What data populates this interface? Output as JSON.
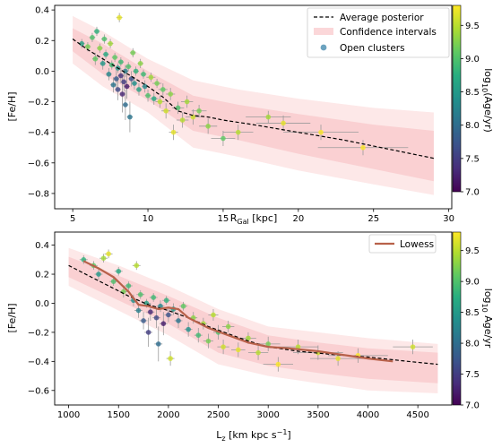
{
  "colors": {
    "band_outer": "#fde8e8",
    "band_inner": "#f9c9cc",
    "avg_line": "#000000",
    "lowess": "#b8614a",
    "errorbar": "#9a9a9a",
    "viridis": [
      "#440154",
      "#472d7b",
      "#3b528b",
      "#2c728e",
      "#21918c",
      "#28ae80",
      "#5ec962",
      "#addc30",
      "#fde725"
    ]
  },
  "chart_data": [
    {
      "type": "scatter",
      "title": "",
      "xlabel_main": "R",
      "xlabel_sub": "Gal",
      "xlabel_unit": " [kpc]",
      "ylabel": "[Fe/H]",
      "xlim": [
        3.8,
        30.2
      ],
      "ylim": [
        -0.9,
        0.43
      ],
      "xticks": [
        5,
        10,
        15,
        20,
        25,
        30
      ],
      "yticks": [
        -0.8,
        -0.6,
        -0.4,
        -0.2,
        0.0,
        0.2,
        0.4
      ],
      "yticklabels": [
        "−0.8",
        "−0.6",
        "−0.4",
        "−0.2",
        "0.0",
        "0.2",
        "0.4"
      ],
      "legend_position": "top-right",
      "legend": {
        "avg": "Average posterior",
        "ci": "Confidence intervals",
        "oc": "Open clusters"
      },
      "average_posterior": {
        "x": [
          5,
          6,
          7,
          8,
          9,
          10,
          11,
          12,
          13,
          14,
          15,
          17,
          20,
          23,
          26,
          29
        ],
        "y": [
          0.21,
          0.14,
          0.08,
          0.02,
          -0.04,
          -0.1,
          -0.17,
          -0.26,
          -0.29,
          -0.3,
          -0.32,
          -0.35,
          -0.4,
          -0.45,
          -0.51,
          -0.57
        ]
      },
      "band_outer": {
        "x": [
          5,
          7,
          10,
          13,
          16,
          20,
          25,
          29
        ],
        "upper": [
          0.36,
          0.26,
          0.08,
          -0.06,
          -0.12,
          -0.18,
          -0.24,
          -0.27
        ],
        "lower": [
          0.05,
          -0.1,
          -0.27,
          -0.5,
          -0.56,
          -0.65,
          -0.74,
          -0.81
        ]
      },
      "band_inner": {
        "x": [
          5,
          7,
          10,
          13,
          16,
          20,
          25,
          29
        ],
        "upper": [
          0.28,
          0.18,
          0.0,
          -0.16,
          -0.22,
          -0.28,
          -0.35,
          -0.39
        ],
        "lower": [
          0.13,
          -0.02,
          -0.19,
          -0.39,
          -0.45,
          -0.54,
          -0.64,
          -0.72
        ]
      },
      "colorbar": {
        "label": "log10(Age/yr)",
        "label_main": "log",
        "label_sub": "10",
        "label_rest": "(Age/yr)",
        "range": [
          7.0,
          9.8
        ],
        "ticks": [
          7.0,
          7.5,
          8.0,
          8.5,
          9.0,
          9.5
        ]
      },
      "points": [
        {
          "x": 5.6,
          "y": 0.18,
          "age": 8.6,
          "xerr": 0.2,
          "yerr": 0.03
        },
        {
          "x": 6.0,
          "y": 0.16,
          "age": 9.2,
          "xerr": 0.2,
          "yerr": 0.03
        },
        {
          "x": 6.3,
          "y": 0.22,
          "age": 9.0,
          "xerr": 0.2,
          "yerr": 0.03
        },
        {
          "x": 6.5,
          "y": 0.08,
          "age": 9.1,
          "xerr": 0.2,
          "yerr": 0.04
        },
        {
          "x": 6.6,
          "y": 0.26,
          "age": 8.8,
          "xerr": 0.2,
          "yerr": 0.03
        },
        {
          "x": 6.8,
          "y": 0.15,
          "age": 9.3,
          "xerr": 0.2,
          "yerr": 0.03
        },
        {
          "x": 7.0,
          "y": 0.05,
          "age": 8.5,
          "xerr": 0.2,
          "yerr": 0.04
        },
        {
          "x": 7.1,
          "y": 0.21,
          "age": 9.0,
          "xerr": 0.2,
          "yerr": 0.03
        },
        {
          "x": 7.2,
          "y": 0.11,
          "age": 8.7,
          "xerr": 0.2,
          "yerr": 0.03
        },
        {
          "x": 7.4,
          "y": -0.02,
          "age": 8.3,
          "xerr": 0.2,
          "yerr": 0.04
        },
        {
          "x": 7.5,
          "y": 0.18,
          "age": 9.4,
          "xerr": 0.2,
          "yerr": 0.03
        },
        {
          "x": 7.6,
          "y": 0.04,
          "age": 8.9,
          "xerr": 0.2,
          "yerr": 0.03
        },
        {
          "x": 7.7,
          "y": -0.09,
          "age": 8.1,
          "xerr": 0.2,
          "yerr": 0.05
        },
        {
          "x": 7.8,
          "y": 0.09,
          "age": 9.1,
          "xerr": 0.2,
          "yerr": 0.03
        },
        {
          "x": 7.9,
          "y": -0.05,
          "age": 7.8,
          "xerr": 0.2,
          "yerr": 0.06
        },
        {
          "x": 8.0,
          "y": 0.02,
          "age": 8.5,
          "xerr": 0.2,
          "yerr": 0.03
        },
        {
          "x": 8.0,
          "y": -0.12,
          "age": 7.6,
          "xerr": 0.2,
          "yerr": 0.07
        },
        {
          "x": 8.1,
          "y": 0.35,
          "age": 9.7,
          "xerr": 0.2,
          "yerr": 0.03
        },
        {
          "x": 8.2,
          "y": -0.03,
          "age": 7.4,
          "xerr": 0.2,
          "yerr": 0.05
        },
        {
          "x": 8.2,
          "y": 0.06,
          "age": 8.9,
          "xerr": 0.2,
          "yerr": 0.03
        },
        {
          "x": 8.3,
          "y": -0.15,
          "age": 7.3,
          "xerr": 0.2,
          "yerr": 0.12
        },
        {
          "x": 8.4,
          "y": -0.07,
          "age": 7.5,
          "xerr": 0.2,
          "yerr": 0.06
        },
        {
          "x": 8.5,
          "y": 0.0,
          "age": 8.2,
          "xerr": 0.2,
          "yerr": 0.04
        },
        {
          "x": 8.5,
          "y": -0.22,
          "age": 8.0,
          "xerr": 0.2,
          "yerr": 0.1
        },
        {
          "x": 8.6,
          "y": -0.1,
          "age": 7.2,
          "xerr": 0.2,
          "yerr": 0.08
        },
        {
          "x": 8.7,
          "y": 0.03,
          "age": 9.0,
          "xerr": 0.2,
          "yerr": 0.03
        },
        {
          "x": 8.8,
          "y": -0.3,
          "age": 8.1,
          "xerr": 0.2,
          "yerr": 0.1
        },
        {
          "x": 8.9,
          "y": -0.05,
          "age": 7.7,
          "xerr": 0.2,
          "yerr": 0.05
        },
        {
          "x": 9.0,
          "y": 0.12,
          "age": 9.2,
          "xerr": 0.2,
          "yerr": 0.03
        },
        {
          "x": 9.1,
          "y": -0.08,
          "age": 8.4,
          "xerr": 0.2,
          "yerr": 0.04
        },
        {
          "x": 9.2,
          "y": 0.0,
          "age": 8.8,
          "xerr": 0.2,
          "yerr": 0.03
        },
        {
          "x": 9.4,
          "y": -0.12,
          "age": 8.6,
          "xerr": 0.2,
          "yerr": 0.04
        },
        {
          "x": 9.5,
          "y": 0.05,
          "age": 9.3,
          "xerr": 0.2,
          "yerr": 0.03
        },
        {
          "x": 9.7,
          "y": -0.02,
          "age": 8.9,
          "xerr": 0.2,
          "yerr": 0.03
        },
        {
          "x": 9.8,
          "y": -0.1,
          "age": 8.3,
          "xerr": 0.2,
          "yerr": 0.04
        },
        {
          "x": 10.0,
          "y": -0.16,
          "age": 9.0,
          "xerr": 0.2,
          "yerr": 0.04
        },
        {
          "x": 10.2,
          "y": -0.04,
          "age": 9.4,
          "xerr": 0.3,
          "yerr": 0.03
        },
        {
          "x": 10.4,
          "y": -0.18,
          "age": 8.7,
          "xerr": 0.3,
          "yerr": 0.04
        },
        {
          "x": 10.6,
          "y": -0.08,
          "age": 9.2,
          "xerr": 0.3,
          "yerr": 0.03
        },
        {
          "x": 10.8,
          "y": -0.2,
          "age": 9.5,
          "xerr": 0.3,
          "yerr": 0.04
        },
        {
          "x": 11.0,
          "y": -0.12,
          "age": 9.1,
          "xerr": 0.3,
          "yerr": 0.04
        },
        {
          "x": 11.2,
          "y": -0.26,
          "age": 9.6,
          "xerr": 0.3,
          "yerr": 0.05
        },
        {
          "x": 11.5,
          "y": -0.15,
          "age": 9.3,
          "xerr": 0.3,
          "yerr": 0.04
        },
        {
          "x": 11.7,
          "y": -0.4,
          "age": 9.7,
          "xerr": 0.3,
          "yerr": 0.05
        },
        {
          "x": 12.0,
          "y": -0.24,
          "age": 9.0,
          "xerr": 0.4,
          "yerr": 0.04
        },
        {
          "x": 12.3,
          "y": -0.32,
          "age": 9.5,
          "xerr": 0.4,
          "yerr": 0.05
        },
        {
          "x": 12.6,
          "y": -0.2,
          "age": 9.4,
          "xerr": 0.4,
          "yerr": 0.04
        },
        {
          "x": 13.0,
          "y": -0.3,
          "age": 9.6,
          "xerr": 0.5,
          "yerr": 0.05
        },
        {
          "x": 13.4,
          "y": -0.26,
          "age": 9.2,
          "xerr": 0.5,
          "yerr": 0.04
        },
        {
          "x": 14.0,
          "y": -0.36,
          "age": 9.3,
          "xerr": 0.6,
          "yerr": 0.05
        },
        {
          "x": 15.0,
          "y": -0.44,
          "age": 9.1,
          "xerr": 0.8,
          "yerr": 0.05
        },
        {
          "x": 16.0,
          "y": -0.4,
          "age": 9.5,
          "xerr": 1.0,
          "yerr": 0.05
        },
        {
          "x": 18.0,
          "y": -0.3,
          "age": 9.4,
          "xerr": 1.5,
          "yerr": 0.04
        },
        {
          "x": 19.0,
          "y": -0.34,
          "age": 9.7,
          "xerr": 1.8,
          "yerr": 0.05
        },
        {
          "x": 21.5,
          "y": -0.4,
          "age": 9.8,
          "xerr": 2.5,
          "yerr": 0.05
        },
        {
          "x": 24.3,
          "y": -0.5,
          "age": 9.8,
          "xerr": 3.0,
          "yerr": 0.05
        }
      ]
    },
    {
      "type": "scatter",
      "title": "",
      "xlabel_main": "L",
      "xlabel_sub": "z",
      "xlabel_unit": " [km kpc s",
      "xlabel_sup": "−1",
      "xlabel_close": "]",
      "ylabel": "[Fe/H]",
      "xlim": [
        860,
        4840
      ],
      "ylim": [
        -0.7,
        0.49
      ],
      "xticks": [
        1000,
        1500,
        2000,
        2500,
        3000,
        3500,
        4000,
        4500
      ],
      "yticks": [
        -0.6,
        -0.4,
        -0.2,
        0.0,
        0.2,
        0.4
      ],
      "yticklabels": [
        "−0.6",
        "−0.4",
        "−0.2",
        "0.0",
        "0.2",
        "0.4"
      ],
      "legend_position": "top-right",
      "legend": {
        "lowess": "Lowess"
      },
      "average_posterior": {
        "x": [
          1000,
          1200,
          1400,
          1600,
          1800,
          2000,
          2200,
          2400,
          2600,
          2800,
          3000,
          3300,
          3600,
          4000,
          4400,
          4700
        ],
        "y": [
          0.26,
          0.19,
          0.12,
          0.05,
          -0.01,
          -0.05,
          -0.1,
          -0.16,
          -0.21,
          -0.26,
          -0.3,
          -0.33,
          -0.35,
          -0.37,
          -0.4,
          -0.42
        ]
      },
      "band_outer": {
        "x": [
          1000,
          1500,
          2000,
          2500,
          3000,
          3500,
          4000,
          4700
        ],
        "upper": [
          0.38,
          0.26,
          0.12,
          -0.04,
          -0.16,
          -0.2,
          -0.24,
          -0.28
        ],
        "lower": [
          0.12,
          -0.05,
          -0.22,
          -0.42,
          -0.5,
          -0.55,
          -0.6,
          -0.62
        ]
      },
      "band_inner": {
        "x": [
          1000,
          1500,
          2000,
          2500,
          3000,
          3500,
          4000,
          4700
        ],
        "upper": [
          0.32,
          0.19,
          0.05,
          -0.1,
          -0.22,
          -0.27,
          -0.31,
          -0.34
        ],
        "lower": [
          0.18,
          0.02,
          -0.14,
          -0.34,
          -0.43,
          -0.48,
          -0.52,
          -0.55
        ]
      },
      "lowess": {
        "x": [
          1150,
          1300,
          1450,
          1600,
          1700,
          1800,
          1900,
          2000,
          2100,
          2200,
          2400,
          2600,
          2800,
          3000,
          3200,
          3500,
          3800,
          4000,
          4250
        ],
        "y": [
          0.29,
          0.24,
          0.18,
          0.08,
          -0.01,
          -0.02,
          -0.04,
          -0.03,
          -0.04,
          -0.1,
          -0.17,
          -0.22,
          -0.27,
          -0.3,
          -0.31,
          -0.33,
          -0.36,
          -0.38,
          -0.4
        ]
      },
      "colorbar": {
        "label": "log10 Age/yr",
        "label_main": "log",
        "label_sub": "10",
        "label_rest": " Age/yr",
        "range": [
          7.0,
          9.8
        ],
        "ticks": [
          7.0,
          7.5,
          8.0,
          8.5,
          9.0,
          9.5
        ]
      },
      "points": [
        {
          "x": 1150,
          "y": 0.3,
          "age": 8.8,
          "xerr": 40,
          "yerr": 0.03
        },
        {
          "x": 1250,
          "y": 0.26,
          "age": 9.1,
          "xerr": 40,
          "yerr": 0.03
        },
        {
          "x": 1300,
          "y": 0.2,
          "age": 8.5,
          "xerr": 40,
          "yerr": 0.04
        },
        {
          "x": 1350,
          "y": 0.31,
          "age": 9.4,
          "xerr": 40,
          "yerr": 0.03
        },
        {
          "x": 1400,
          "y": 0.34,
          "age": 9.7,
          "xerr": 40,
          "yerr": 0.03
        },
        {
          "x": 1450,
          "y": 0.15,
          "age": 9.0,
          "xerr": 40,
          "yerr": 0.03
        },
        {
          "x": 1500,
          "y": 0.22,
          "age": 8.7,
          "xerr": 40,
          "yerr": 0.03
        },
        {
          "x": 1550,
          "y": 0.08,
          "age": 9.2,
          "xerr": 40,
          "yerr": 0.04
        },
        {
          "x": 1600,
          "y": 0.12,
          "age": 8.9,
          "xerr": 40,
          "yerr": 0.03
        },
        {
          "x": 1650,
          "y": 0.02,
          "age": 8.4,
          "xerr": 40,
          "yerr": 0.04
        },
        {
          "x": 1680,
          "y": 0.26,
          "age": 9.5,
          "xerr": 40,
          "yerr": 0.03
        },
        {
          "x": 1700,
          "y": -0.05,
          "age": 8.2,
          "xerr": 40,
          "yerr": 0.05
        },
        {
          "x": 1720,
          "y": 0.06,
          "age": 9.0,
          "xerr": 40,
          "yerr": 0.03
        },
        {
          "x": 1750,
          "y": -0.12,
          "age": 7.8,
          "xerr": 40,
          "yerr": 0.06
        },
        {
          "x": 1780,
          "y": 0.0,
          "age": 8.6,
          "xerr": 40,
          "yerr": 0.03
        },
        {
          "x": 1800,
          "y": -0.2,
          "age": 7.5,
          "xerr": 40,
          "yerr": 0.1
        },
        {
          "x": 1820,
          "y": -0.06,
          "age": 7.3,
          "xerr": 40,
          "yerr": 0.06
        },
        {
          "x": 1850,
          "y": 0.04,
          "age": 8.9,
          "xerr": 40,
          "yerr": 0.03
        },
        {
          "x": 1880,
          "y": -0.1,
          "age": 7.6,
          "xerr": 40,
          "yerr": 0.07
        },
        {
          "x": 1900,
          "y": -0.28,
          "age": 8.0,
          "xerr": 40,
          "yerr": 0.12
        },
        {
          "x": 1920,
          "y": -0.02,
          "age": 8.3,
          "xerr": 40,
          "yerr": 0.04
        },
        {
          "x": 1950,
          "y": -0.14,
          "age": 7.2,
          "xerr": 40,
          "yerr": 0.08
        },
        {
          "x": 1980,
          "y": 0.02,
          "age": 8.8,
          "xerr": 40,
          "yerr": 0.03
        },
        {
          "x": 2000,
          "y": -0.08,
          "age": 7.7,
          "xerr": 40,
          "yerr": 0.05
        },
        {
          "x": 2020,
          "y": -0.38,
          "age": 9.6,
          "xerr": 40,
          "yerr": 0.05
        },
        {
          "x": 2050,
          "y": -0.04,
          "age": 8.5,
          "xerr": 40,
          "yerr": 0.04
        },
        {
          "x": 2100,
          "y": -0.12,
          "age": 8.1,
          "xerr": 40,
          "yerr": 0.05
        },
        {
          "x": 2150,
          "y": -0.02,
          "age": 9.1,
          "xerr": 40,
          "yerr": 0.03
        },
        {
          "x": 2200,
          "y": -0.18,
          "age": 8.4,
          "xerr": 40,
          "yerr": 0.05
        },
        {
          "x": 2250,
          "y": -0.1,
          "age": 9.3,
          "xerr": 40,
          "yerr": 0.04
        },
        {
          "x": 2300,
          "y": -0.22,
          "age": 8.9,
          "xerr": 40,
          "yerr": 0.05
        },
        {
          "x": 2350,
          "y": -0.14,
          "age": 9.4,
          "xerr": 40,
          "yerr": 0.04
        },
        {
          "x": 2400,
          "y": -0.26,
          "age": 9.2,
          "xerr": 50,
          "yerr": 0.05
        },
        {
          "x": 2450,
          "y": -0.08,
          "age": 9.5,
          "xerr": 50,
          "yerr": 0.04
        },
        {
          "x": 2500,
          "y": -0.2,
          "age": 9.0,
          "xerr": 50,
          "yerr": 0.05
        },
        {
          "x": 2550,
          "y": -0.3,
          "age": 9.6,
          "xerr": 60,
          "yerr": 0.05
        },
        {
          "x": 2600,
          "y": -0.16,
          "age": 9.3,
          "xerr": 60,
          "yerr": 0.04
        },
        {
          "x": 2700,
          "y": -0.32,
          "age": 9.7,
          "xerr": 70,
          "yerr": 0.05
        },
        {
          "x": 2800,
          "y": -0.24,
          "age": 9.4,
          "xerr": 80,
          "yerr": 0.04
        },
        {
          "x": 2900,
          "y": -0.34,
          "age": 9.5,
          "xerr": 100,
          "yerr": 0.05
        },
        {
          "x": 3000,
          "y": -0.28,
          "age": 9.2,
          "xerr": 120,
          "yerr": 0.05
        },
        {
          "x": 3100,
          "y": -0.42,
          "age": 9.8,
          "xerr": 150,
          "yerr": 0.05
        },
        {
          "x": 3300,
          "y": -0.3,
          "age": 9.5,
          "xerr": 200,
          "yerr": 0.05
        },
        {
          "x": 3500,
          "y": -0.34,
          "age": 9.6,
          "xerr": 250,
          "yerr": 0.05
        },
        {
          "x": 3700,
          "y": -0.38,
          "age": 9.7,
          "xerr": 280,
          "yerr": 0.05
        },
        {
          "x": 3900,
          "y": -0.36,
          "age": 9.8,
          "xerr": 300,
          "yerr": 0.05
        },
        {
          "x": 4450,
          "y": -0.3,
          "age": 9.6,
          "xerr": 200,
          "yerr": 0.05
        }
      ]
    }
  ]
}
